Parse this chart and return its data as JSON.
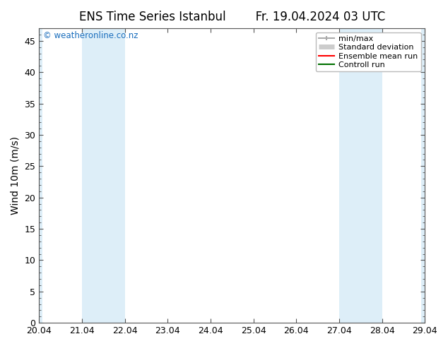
{
  "title_left": "ENS Time Series Istanbul",
  "title_right": "Fr. 19.04.2024 03 UTC",
  "ylabel": "Wind 10m (m/s)",
  "watermark": "© weatheronline.co.nz",
  "ylim": [
    0,
    47
  ],
  "yticks": [
    0,
    5,
    10,
    15,
    20,
    25,
    30,
    35,
    40,
    45
  ],
  "xlim_min": 0.0,
  "xlim_max": 9.0,
  "xtick_labels": [
    "20.04",
    "21.04",
    "22.04",
    "23.04",
    "24.04",
    "25.04",
    "26.04",
    "27.04",
    "28.04",
    "29.04"
  ],
  "xtick_positions": [
    0,
    1,
    2,
    3,
    4,
    5,
    6,
    7,
    8,
    9
  ],
  "background_color": "#ffffff",
  "plot_bg_color": "#ffffff",
  "shaded_color": "#ddeef8",
  "shaded_bands": [
    [
      0.0,
      0.08
    ],
    [
      1.0,
      2.0
    ],
    [
      7.0,
      8.0
    ],
    [
      8.92,
      9.0
    ]
  ],
  "legend_entries": [
    {
      "label": "min/max",
      "color": "#aaaaaa",
      "lw": 1.5,
      "style": "line_with_caps"
    },
    {
      "label": "Standard deviation",
      "color": "#cccccc",
      "lw": 5,
      "style": "thick_line"
    },
    {
      "label": "Ensemble mean run",
      "color": "#ff0000",
      "lw": 1.5,
      "style": "line"
    },
    {
      "label": "Controll run",
      "color": "#007000",
      "lw": 1.5,
      "style": "line"
    }
  ],
  "title_fontsize": 12,
  "axis_label_fontsize": 10,
  "tick_fontsize": 9,
  "watermark_color": "#1a6ebd",
  "border_color": "#555555",
  "tick_color": "#555555"
}
